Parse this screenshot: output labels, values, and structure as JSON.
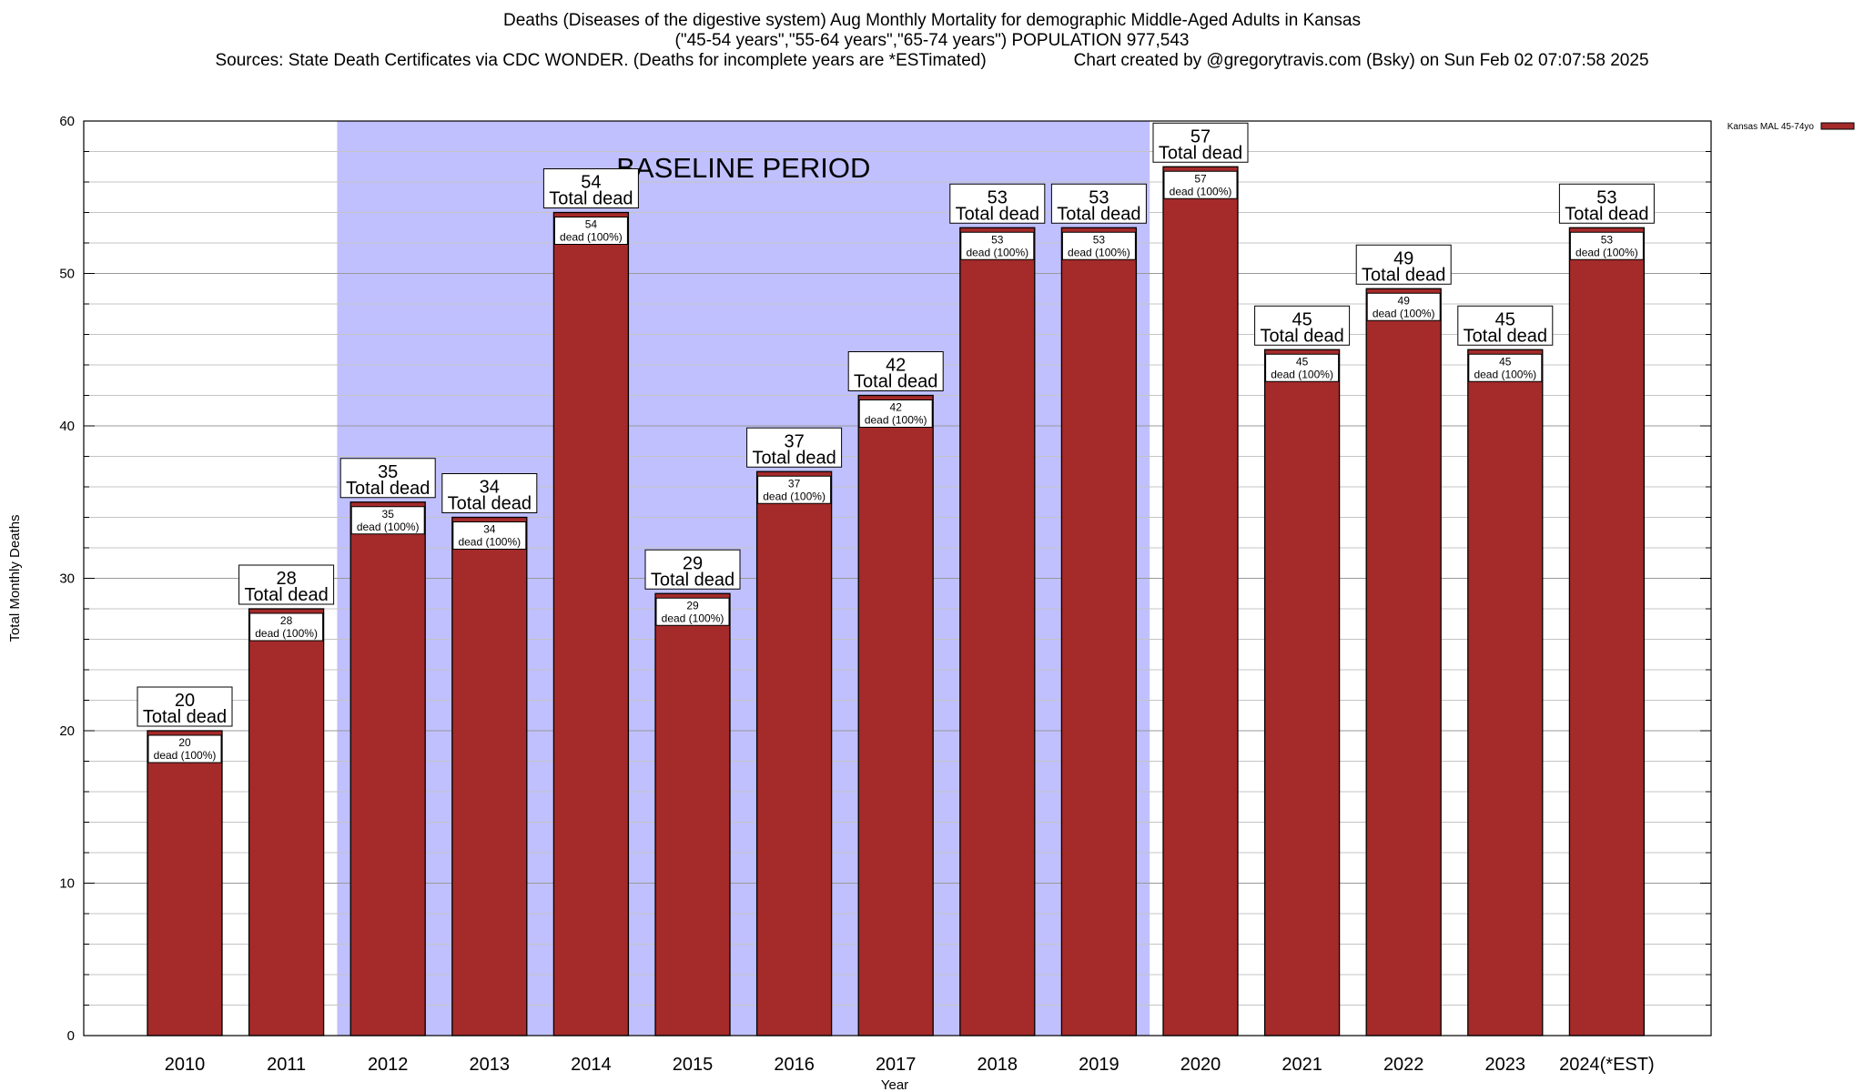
{
  "header": {
    "title_line1": "Deaths (Diseases of the digestive system) Aug Monthly Mortality for demographic Middle-Aged Adults in Kansas",
    "title_line2": "(\"45-54 years\",\"55-64 years\",\"65-74 years\") POPULATION 977,543",
    "sources": "Sources: State Death Certificates via CDC WONDER. (Deaths for incomplete years are *ESTimated)",
    "credit": "Chart created by @gregorytravis.com (Bsky) on Sun Feb 02 07:07:58 2025"
  },
  "chart_data": {
    "type": "bar",
    "title": "Deaths (Diseases of the digestive system) Aug Monthly Mortality for demographic Middle-Aged Adults in Kansas",
    "xlabel": "Year",
    "ylabel": "Total Monthly Deaths",
    "ylim": [
      0,
      60
    ],
    "yticks": [
      0,
      10,
      20,
      30,
      40,
      50,
      60
    ],
    "categories": [
      "2010",
      "2011",
      "2012",
      "2013",
      "2014",
      "2015",
      "2016",
      "2017",
      "2018",
      "2019",
      "2020",
      "2021",
      "2022",
      "2023",
      "2024(*EST)"
    ],
    "series": [
      {
        "name": "Kansas MAL 45-74yo",
        "color": "#a52a2a",
        "values": [
          20,
          28,
          35,
          34,
          54,
          29,
          37,
          42,
          53,
          53,
          57,
          45,
          49,
          45,
          53
        ]
      }
    ],
    "total_label_suffix": "Total dead",
    "inner_label_suffix": "dead (100%)",
    "baseline": {
      "label": "BASELINE PERIOD",
      "from": "2012",
      "to": "2019",
      "color": "#c0c0ff"
    },
    "legend": {
      "placement": "top-right",
      "label": "Kansas MAL 45-74yo"
    },
    "grid": true
  }
}
